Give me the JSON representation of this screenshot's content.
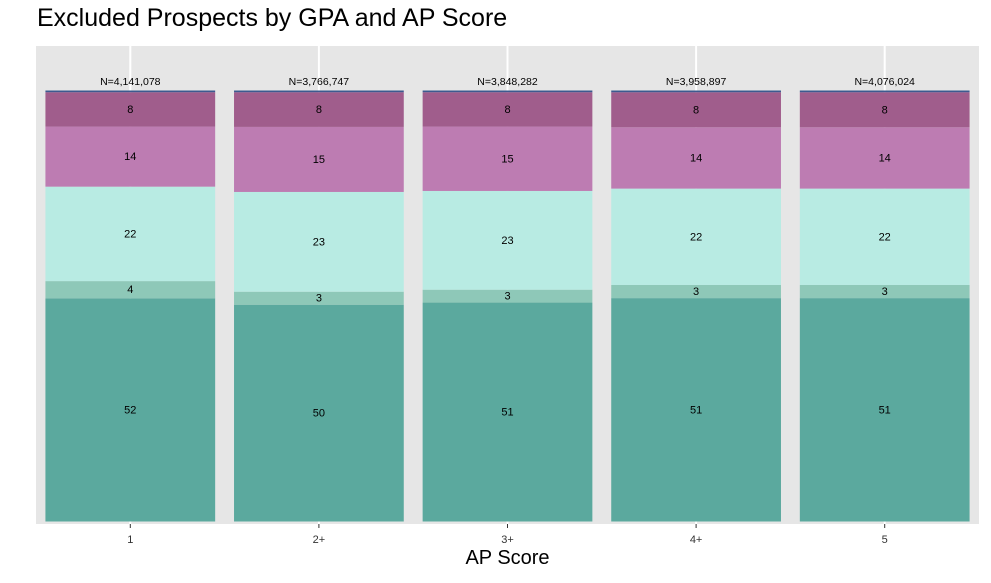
{
  "chart_data": {
    "type": "bar",
    "stacked": true,
    "percent_stack": true,
    "title": "Excluded Prospects by GPA and AP Score",
    "xlabel": "AP Score",
    "ylabel": "",
    "categories": [
      "1",
      "2+",
      "3+",
      "4+",
      "5"
    ],
    "totals": [
      "N=4,141,078",
      "N=3,766,747",
      "N=3,848,282",
      "N=3,958,897",
      "N=4,076,024"
    ],
    "ylim": [
      0,
      100
    ],
    "grid": true,
    "legend": "none",
    "series": [
      {
        "values": [
          52,
          50,
          51,
          51,
          51
        ],
        "color": "#5ba99e"
      },
      {
        "values": [
          4,
          3,
          3,
          3,
          3
        ],
        "color": "#8ec8b8"
      },
      {
        "values": [
          22,
          23,
          23,
          22,
          22
        ],
        "color": "#b8ebe3"
      },
      {
        "values": [
          14,
          15,
          15,
          14,
          14
        ],
        "color": "#bd7cb2"
      },
      {
        "values": [
          8,
          8,
          8,
          8,
          8
        ],
        "color": "#a05d8c"
      },
      {
        "values": [
          0.4,
          0.4,
          0.4,
          0.4,
          0.4
        ],
        "color": "#3d5a8f"
      }
    ]
  }
}
